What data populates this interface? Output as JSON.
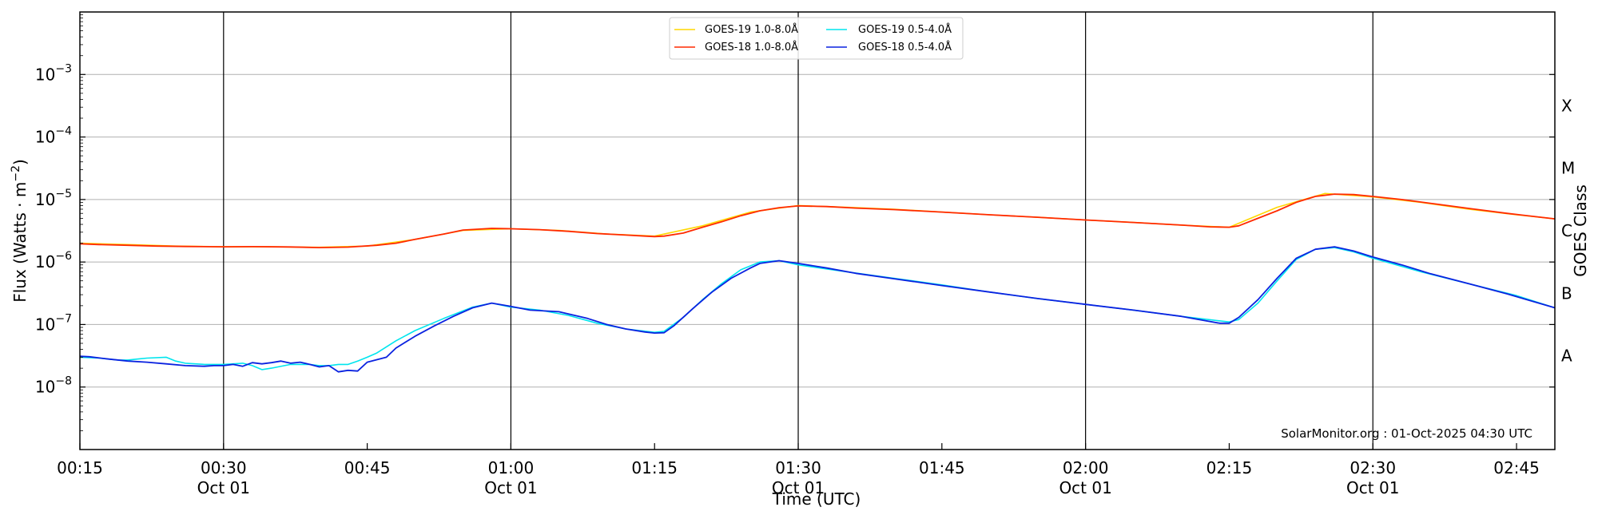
{
  "chart_data": {
    "type": "line",
    "xlabel": "Time (UTC)",
    "ylabel": "Flux (Watts · m",
    "ylabel_sup": "−2",
    "ylabel_close": ")",
    "y2label": "GOES Class",
    "watermark": "SolarMonitor.org : 01-Oct-2025 04:30 UTC",
    "yscale": "log",
    "ylim": [
      1e-09,
      0.01
    ],
    "xlim": [
      "00:15",
      "02:49"
    ],
    "grid": "horizontal",
    "legend_placement": "top-center",
    "x_ticks": [
      {
        "t": "00:15",
        "line1": "00:15",
        "line2": ""
      },
      {
        "t": "00:30",
        "line1": "00:30",
        "line2": "Oct 01"
      },
      {
        "t": "00:45",
        "line1": "00:45",
        "line2": ""
      },
      {
        "t": "01:00",
        "line1": "01:00",
        "line2": "Oct 01"
      },
      {
        "t": "01:15",
        "line1": "01:15",
        "line2": ""
      },
      {
        "t": "01:30",
        "line1": "01:30",
        "line2": "Oct 01"
      },
      {
        "t": "01:45",
        "line1": "01:45",
        "line2": ""
      },
      {
        "t": "02:00",
        "line1": "02:00",
        "line2": "Oct 01"
      },
      {
        "t": "02:15",
        "line1": "02:15",
        "line2": ""
      },
      {
        "t": "02:30",
        "line1": "02:30",
        "line2": "Oct 01"
      },
      {
        "t": "02:45",
        "line1": "02:45",
        "line2": ""
      }
    ],
    "vertical_lines": [
      "00:30",
      "01:00",
      "01:30",
      "02:00",
      "02:30"
    ],
    "y_ticks": [
      {
        "value": 1e-08,
        "base": "10",
        "exp": "−8"
      },
      {
        "value": 1e-07,
        "base": "10",
        "exp": "−7"
      },
      {
        "value": 1e-06,
        "base": "10",
        "exp": "−6"
      },
      {
        "value": 1e-05,
        "base": "10",
        "exp": "−5"
      },
      {
        "value": 0.0001,
        "base": "10",
        "exp": "−4"
      },
      {
        "value": 0.001,
        "base": "10",
        "exp": "−3"
      }
    ],
    "goes_classes": [
      {
        "label": "A",
        "value": 3.16e-08
      },
      {
        "label": "B",
        "value": 3.16e-07
      },
      {
        "label": "C",
        "value": 3.16e-06
      },
      {
        "label": "M",
        "value": 3.16e-05
      },
      {
        "label": "X",
        "value": 0.000316
      }
    ],
    "legend": [
      {
        "name": "GOES-19 1.0-8.0Å",
        "color": "#FFD700"
      },
      {
        "name": "GOES-18 1.0-8.0Å",
        "color": "#FF2A00"
      },
      {
        "name": "GOES-19 0.5-4.0Å",
        "color": "#00E5EE"
      },
      {
        "name": "GOES-18 0.5-4.0Å",
        "color": "#0A22E0"
      }
    ],
    "series": [
      {
        "name": "GOES-19 1.0-8.0Å",
        "color": "#FFD700",
        "width": 1.6,
        "points": [
          [
            "00:15",
            2e-06
          ],
          [
            "00:20",
            1.9e-06
          ],
          [
            "00:25",
            1.8e-06
          ],
          [
            "00:30",
            1.75e-06
          ],
          [
            "00:35",
            1.75e-06
          ],
          [
            "00:40",
            1.72e-06
          ],
          [
            "00:45",
            1.8e-06
          ],
          [
            "00:50",
            2.3e-06
          ],
          [
            "00:55",
            3.2e-06
          ],
          [
            "01:00",
            3.4e-06
          ],
          [
            "01:05",
            3.2e-06
          ],
          [
            "01:10",
            2.8e-06
          ],
          [
            "01:15",
            2.6e-06
          ],
          [
            "01:20",
            3.8e-06
          ],
          [
            "01:25",
            6.3e-06
          ],
          [
            "01:30",
            8e-06
          ],
          [
            "01:35",
            7.5e-06
          ],
          [
            "01:40",
            7e-06
          ],
          [
            "01:45",
            6.3e-06
          ],
          [
            "01:50",
            5.7e-06
          ],
          [
            "01:55",
            5.2e-06
          ],
          [
            "02:00",
            4.7e-06
          ],
          [
            "02:05",
            4.3e-06
          ],
          [
            "02:10",
            3.9e-06
          ],
          [
            "02:15",
            3.6e-06
          ],
          [
            "02:20",
            7.5e-06
          ],
          [
            "02:25",
            1.25e-05
          ],
          [
            "02:30",
            1.1e-05
          ],
          [
            "02:35",
            9e-06
          ],
          [
            "02:40",
            7e-06
          ],
          [
            "02:45",
            5.7e-06
          ],
          [
            "02:49",
            4.9e-06
          ]
        ]
      },
      {
        "name": "GOES-18 1.0-8.0Å",
        "color": "#FF2A00",
        "width": 1.8,
        "points": [
          [
            "00:15",
            1.95e-06
          ],
          [
            "00:17",
            1.9e-06
          ],
          [
            "00:20",
            1.85e-06
          ],
          [
            "00:23",
            1.8e-06
          ],
          [
            "00:26",
            1.77e-06
          ],
          [
            "00:30",
            1.75e-06
          ],
          [
            "00:33",
            1.76e-06
          ],
          [
            "00:37",
            1.74e-06
          ],
          [
            "00:40",
            1.7e-06
          ],
          [
            "00:43",
            1.73e-06
          ],
          [
            "00:46",
            1.85e-06
          ],
          [
            "00:48",
            2e-06
          ],
          [
            "00:50",
            2.3e-06
          ],
          [
            "00:53",
            2.8e-06
          ],
          [
            "00:55",
            3.25e-06
          ],
          [
            "00:58",
            3.45e-06
          ],
          [
            "01:00",
            3.4e-06
          ],
          [
            "01:03",
            3.3e-06
          ],
          [
            "01:06",
            3.1e-06
          ],
          [
            "01:09",
            2.85e-06
          ],
          [
            "01:12",
            2.7e-06
          ],
          [
            "01:14",
            2.6e-06
          ],
          [
            "01:15",
            2.55e-06
          ],
          [
            "01:16",
            2.6e-06
          ],
          [
            "01:18",
            2.9e-06
          ],
          [
            "01:20",
            3.6e-06
          ],
          [
            "01:22",
            4.4e-06
          ],
          [
            "01:24",
            5.5e-06
          ],
          [
            "01:26",
            6.6e-06
          ],
          [
            "01:28",
            7.4e-06
          ],
          [
            "01:30",
            7.9e-06
          ],
          [
            "01:33",
            7.7e-06
          ],
          [
            "01:36",
            7.3e-06
          ],
          [
            "01:40",
            6.9e-06
          ],
          [
            "01:45",
            6.3e-06
          ],
          [
            "01:50",
            5.7e-06
          ],
          [
            "01:55",
            5.2e-06
          ],
          [
            "02:00",
            4.7e-06
          ],
          [
            "02:05",
            4.3e-06
          ],
          [
            "02:10",
            3.9e-06
          ],
          [
            "02:13",
            3.65e-06
          ],
          [
            "02:15",
            3.6e-06
          ],
          [
            "02:16",
            3.8e-06
          ],
          [
            "02:18",
            5e-06
          ],
          [
            "02:20",
            6.6e-06
          ],
          [
            "02:22",
            9e-06
          ],
          [
            "02:24",
            1.12e-05
          ],
          [
            "02:26",
            1.22e-05
          ],
          [
            "02:28",
            1.2e-05
          ],
          [
            "02:30",
            1.12e-05
          ],
          [
            "02:33",
            1e-05
          ],
          [
            "02:36",
            8.7e-06
          ],
          [
            "02:40",
            7.2e-06
          ],
          [
            "02:44",
            6e-06
          ],
          [
            "02:49",
            4.9e-06
          ]
        ]
      },
      {
        "name": "GOES-19 0.5-4.0Å",
        "color": "#00E5EE",
        "width": 1.6,
        "points": [
          [
            "00:15",
            3e-08
          ],
          [
            "00:17",
            2.9e-08
          ],
          [
            "00:19",
            2.7e-08
          ],
          [
            "00:20",
            2.7e-08
          ],
          [
            "00:21",
            2.8e-08
          ],
          [
            "00:22",
            2.9e-08
          ],
          [
            "00:24",
            3e-08
          ],
          [
            "00:25",
            2.6e-08
          ],
          [
            "00:26",
            2.4e-08
          ],
          [
            "00:28",
            2.3e-08
          ],
          [
            "00:30",
            2.3e-08
          ],
          [
            "00:32",
            2.4e-08
          ],
          [
            "00:33",
            2.2e-08
          ],
          [
            "00:34",
            1.9e-08
          ],
          [
            "00:35",
            2e-08
          ],
          [
            "00:37",
            2.3e-08
          ],
          [
            "00:39",
            2.3e-08
          ],
          [
            "00:40",
            2.2e-08
          ],
          [
            "00:41",
            2.2e-08
          ],
          [
            "00:42",
            2.3e-08
          ],
          [
            "00:43",
            2.3e-08
          ],
          [
            "00:44",
            2.6e-08
          ],
          [
            "00:45",
            3e-08
          ],
          [
            "00:46",
            3.5e-08
          ],
          [
            "00:48",
            5.5e-08
          ],
          [
            "00:50",
            8e-08
          ],
          [
            "00:53",
            1.25e-07
          ],
          [
            "00:56",
            1.9e-07
          ],
          [
            "00:58",
            2.2e-07
          ],
          [
            "01:00",
            1.9e-07
          ],
          [
            "01:03",
            1.7e-07
          ],
          [
            "01:06",
            1.4e-07
          ],
          [
            "01:09",
            1.05e-07
          ],
          [
            "01:12",
            8.5e-08
          ],
          [
            "01:15",
            7.5e-08
          ],
          [
            "01:16",
            7.8e-08
          ],
          [
            "01:18",
            1.3e-07
          ],
          [
            "01:20",
            2.5e-07
          ],
          [
            "01:22",
            4.5e-07
          ],
          [
            "01:24",
            7.5e-07
          ],
          [
            "01:26",
            1e-06
          ],
          [
            "01:28",
            1.05e-06
          ],
          [
            "01:30",
            9e-07
          ],
          [
            "01:35",
            7e-07
          ],
          [
            "01:40",
            5.5e-07
          ],
          [
            "01:45",
            4.3e-07
          ],
          [
            "01:50",
            3.3e-07
          ],
          [
            "01:55",
            2.6e-07
          ],
          [
            "02:00",
            2.1e-07
          ],
          [
            "02:05",
            1.7e-07
          ],
          [
            "02:10",
            1.35e-07
          ],
          [
            "02:15",
            1.1e-07
          ],
          [
            "02:16",
            1.2e-07
          ],
          [
            "02:18",
            2.2e-07
          ],
          [
            "02:20",
            5e-07
          ],
          [
            "02:22",
            1.1e-06
          ],
          [
            "02:24",
            1.6e-06
          ],
          [
            "02:26",
            1.7e-06
          ],
          [
            "02:28",
            1.45e-06
          ],
          [
            "02:30",
            1.15e-06
          ],
          [
            "02:35",
            7e-07
          ],
          [
            "02:40",
            4.5e-07
          ],
          [
            "02:45",
            2.9e-07
          ],
          [
            "02:49",
            1.85e-07
          ]
        ]
      },
      {
        "name": "GOES-18 0.5-4.0Å",
        "color": "#0A22E0",
        "width": 1.8,
        "points": [
          [
            "00:15",
            3.1e-08
          ],
          [
            "00:16",
            3.05e-08
          ],
          [
            "00:18",
            2.8e-08
          ],
          [
            "00:20",
            2.6e-08
          ],
          [
            "00:22",
            2.5e-08
          ],
          [
            "00:24",
            2.35e-08
          ],
          [
            "00:26",
            2.2e-08
          ],
          [
            "00:28",
            2.15e-08
          ],
          [
            "00:29",
            2.2e-08
          ],
          [
            "00:30",
            2.2e-08
          ],
          [
            "00:31",
            2.3e-08
          ],
          [
            "00:32",
            2.15e-08
          ],
          [
            "00:33",
            2.45e-08
          ],
          [
            "00:34",
            2.35e-08
          ],
          [
            "00:35",
            2.45e-08
          ],
          [
            "00:36",
            2.6e-08
          ],
          [
            "00:37",
            2.4e-08
          ],
          [
            "00:38",
            2.5e-08
          ],
          [
            "00:39",
            2.3e-08
          ],
          [
            "00:40",
            2.1e-08
          ],
          [
            "00:41",
            2.2e-08
          ],
          [
            "00:42",
            1.75e-08
          ],
          [
            "00:43",
            1.85e-08
          ],
          [
            "00:44",
            1.8e-08
          ],
          [
            "00:45",
            2.5e-08
          ],
          [
            "00:47",
            3e-08
          ],
          [
            "00:48",
            4.2e-08
          ],
          [
            "00:50",
            6.5e-08
          ],
          [
            "00:52",
            9.5e-08
          ],
          [
            "00:54",
            1.35e-07
          ],
          [
            "00:56",
            1.85e-07
          ],
          [
            "00:58",
            2.2e-07
          ],
          [
            "01:00",
            1.95e-07
          ],
          [
            "01:02",
            1.7e-07
          ],
          [
            "01:05",
            1.6e-07
          ],
          [
            "01:08",
            1.25e-07
          ],
          [
            "01:10",
            1e-07
          ],
          [
            "01:12",
            8.5e-08
          ],
          [
            "01:14",
            7.6e-08
          ],
          [
            "01:15",
            7.3e-08
          ],
          [
            "01:16",
            7.4e-08
          ],
          [
            "01:17",
            9.5e-08
          ],
          [
            "01:19",
            1.8e-07
          ],
          [
            "01:21",
            3.3e-07
          ],
          [
            "01:23",
            5.5e-07
          ],
          [
            "01:25",
            8e-07
          ],
          [
            "01:26",
            9.5e-07
          ],
          [
            "01:28",
            1.05e-06
          ],
          [
            "01:30",
            9.5e-07
          ],
          [
            "01:33",
            8e-07
          ],
          [
            "01:36",
            6.6e-07
          ],
          [
            "01:40",
            5.4e-07
          ],
          [
            "01:45",
            4.2e-07
          ],
          [
            "01:50",
            3.3e-07
          ],
          [
            "01:55",
            2.6e-07
          ],
          [
            "02:00",
            2.1e-07
          ],
          [
            "02:05",
            1.7e-07
          ],
          [
            "02:10",
            1.35e-07
          ],
          [
            "02:14",
            1.05e-07
          ],
          [
            "02:15",
            1.05e-07
          ],
          [
            "02:16",
            1.3e-07
          ],
          [
            "02:18",
            2.5e-07
          ],
          [
            "02:20",
            5.5e-07
          ],
          [
            "02:22",
            1.15e-06
          ],
          [
            "02:24",
            1.6e-06
          ],
          [
            "02:26",
            1.75e-06
          ],
          [
            "02:28",
            1.5e-06
          ],
          [
            "02:30",
            1.2e-06
          ],
          [
            "02:33",
            9e-07
          ],
          [
            "02:36",
            6.5e-07
          ],
          [
            "02:40",
            4.5e-07
          ],
          [
            "02:44",
            3.1e-07
          ],
          [
            "02:49",
            1.85e-07
          ]
        ]
      }
    ]
  }
}
